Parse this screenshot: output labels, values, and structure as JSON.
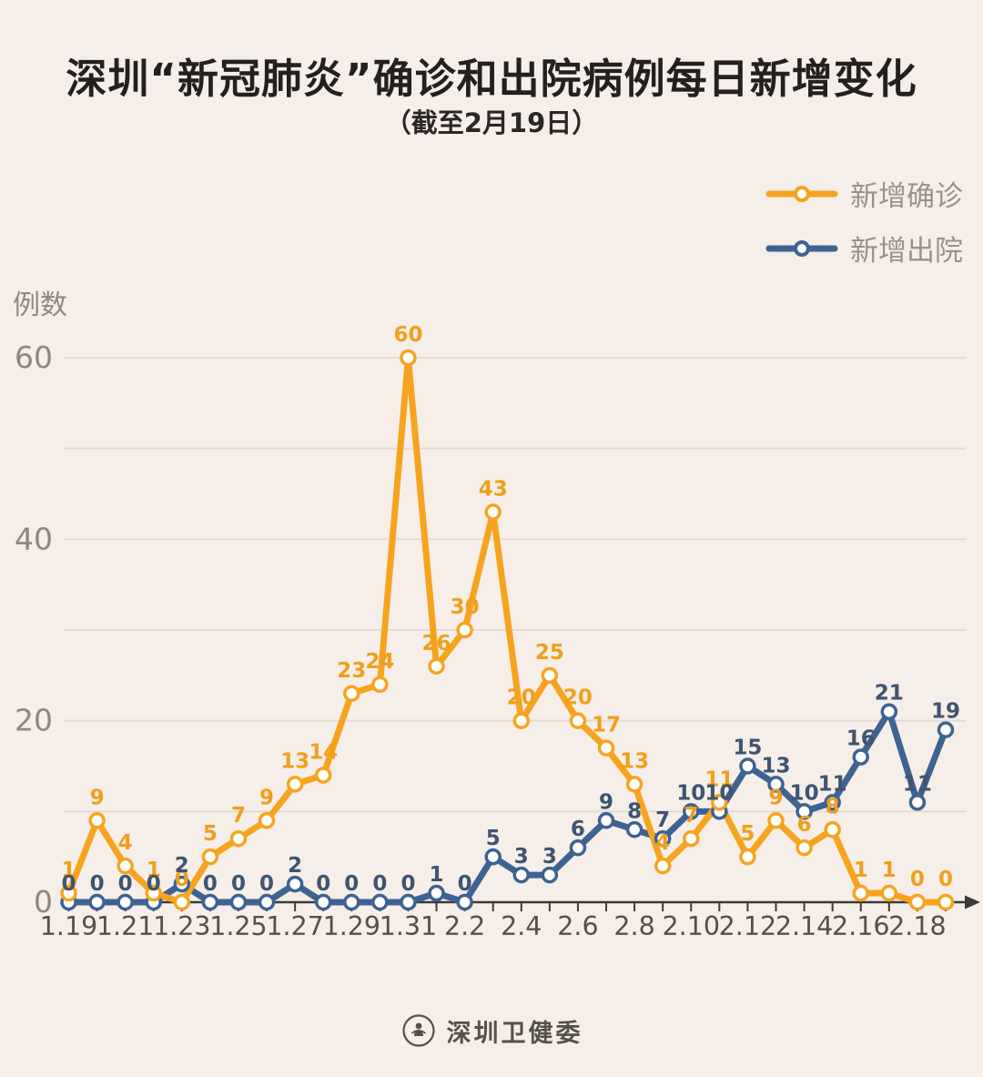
{
  "footer": {
    "source": "深圳卫健委"
  },
  "chart_data": {
    "type": "line",
    "title": "深圳“新冠肺炎”确诊和出院病例每日新增变化",
    "subtitle": "（截至2月19日）",
    "ylabel": "例数",
    "yticks": [
      0,
      20,
      40,
      60
    ],
    "ygrid": [
      10,
      20,
      30,
      40,
      50,
      60
    ],
    "ylim": [
      0,
      62
    ],
    "grid": true,
    "legend_position": "top-right",
    "x_axis_arrow": true,
    "x": [
      "1.19",
      "1.20",
      "1.21",
      "1.22",
      "1.23",
      "1.24",
      "1.25",
      "1.26",
      "1.27",
      "1.28",
      "1.29",
      "1.30",
      "1.31",
      "2.1",
      "2.2",
      "2.3",
      "2.4",
      "2.5",
      "2.6",
      "2.7",
      "2.8",
      "2.9",
      "2.10",
      "2.11",
      "2.12",
      "2.13",
      "2.14",
      "2.15",
      "2.16",
      "2.17",
      "2.18",
      "2.19"
    ],
    "x_tick_labels": [
      "1.19",
      "1.21",
      "1.23",
      "1.25",
      "1.27",
      "1.29",
      "1.31",
      "2.2",
      "2.4",
      "2.6",
      "2.8",
      "2.10",
      "2.12",
      "2.14",
      "2.16",
      "2.18"
    ],
    "series": [
      {
        "name": "新增确诊",
        "key": "confirmed",
        "color": "#F6A41F",
        "label_color": "#EFA01B",
        "values": [
          1,
          9,
          4,
          1,
          0,
          5,
          7,
          9,
          13,
          14,
          23,
          24,
          60,
          26,
          30,
          43,
          20,
          25,
          20,
          17,
          13,
          4,
          7,
          11,
          5,
          9,
          6,
          8,
          1,
          1,
          0,
          0
        ]
      },
      {
        "name": "新增出院",
        "key": "discharged",
        "color": "#3D6392",
        "label_color": "#3E5471",
        "values": [
          0,
          0,
          0,
          0,
          2,
          0,
          0,
          0,
          2,
          0,
          0,
          0,
          0,
          1,
          0,
          5,
          3,
          3,
          6,
          9,
          8,
          7,
          10,
          10,
          15,
          13,
          10,
          11,
          16,
          21,
          11,
          19
        ]
      }
    ],
    "axis_colors": {
      "grid": "#E4DBD4",
      "axis": "#3E3935",
      "y_tick_label": "#8F877E",
      "x_tick_label": "#56504B"
    }
  }
}
